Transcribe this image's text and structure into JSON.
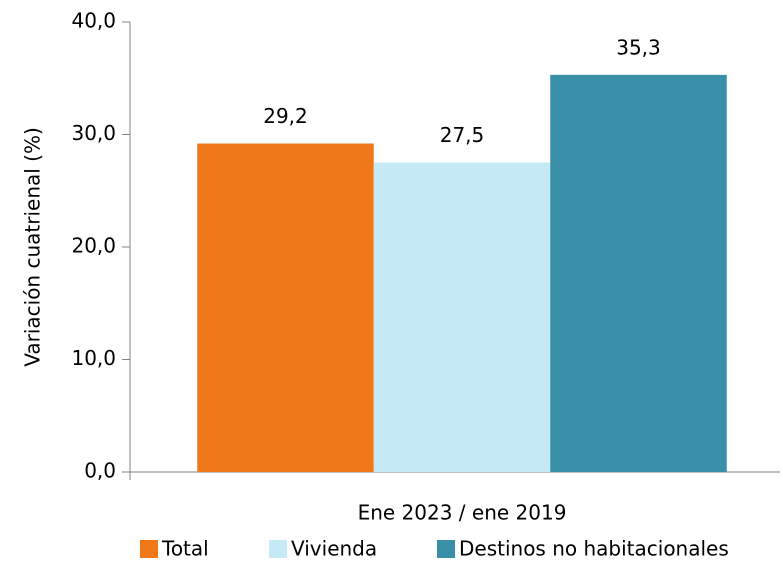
{
  "chart_data": {
    "type": "bar",
    "y_label": "Variación cuatrienal (%)",
    "categories": [
      "Ene 2023 / ene 2019"
    ],
    "series": [
      {
        "name": "Total",
        "color": "#f07818",
        "values": [
          29.2
        ],
        "value_labels": [
          "29,2"
        ]
      },
      {
        "name": "Vivienda",
        "color": "#c5eaf5",
        "values": [
          27.5
        ],
        "value_labels": [
          "27,5"
        ]
      },
      {
        "name": "Destinos no habitacionales",
        "color": "#3a8fa8",
        "values": [
          35.3
        ],
        "value_labels": [
          "35,3"
        ]
      }
    ],
    "ylim": [
      0,
      40
    ],
    "yticks": [
      {
        "value": 0,
        "label": "0,0"
      },
      {
        "value": 10,
        "label": "10,0"
      },
      {
        "value": 20,
        "label": "20,0"
      },
      {
        "value": 30,
        "label": "30,0"
      },
      {
        "value": 40,
        "label": "40,0"
      }
    ],
    "grid": false,
    "legend": "bottom"
  }
}
